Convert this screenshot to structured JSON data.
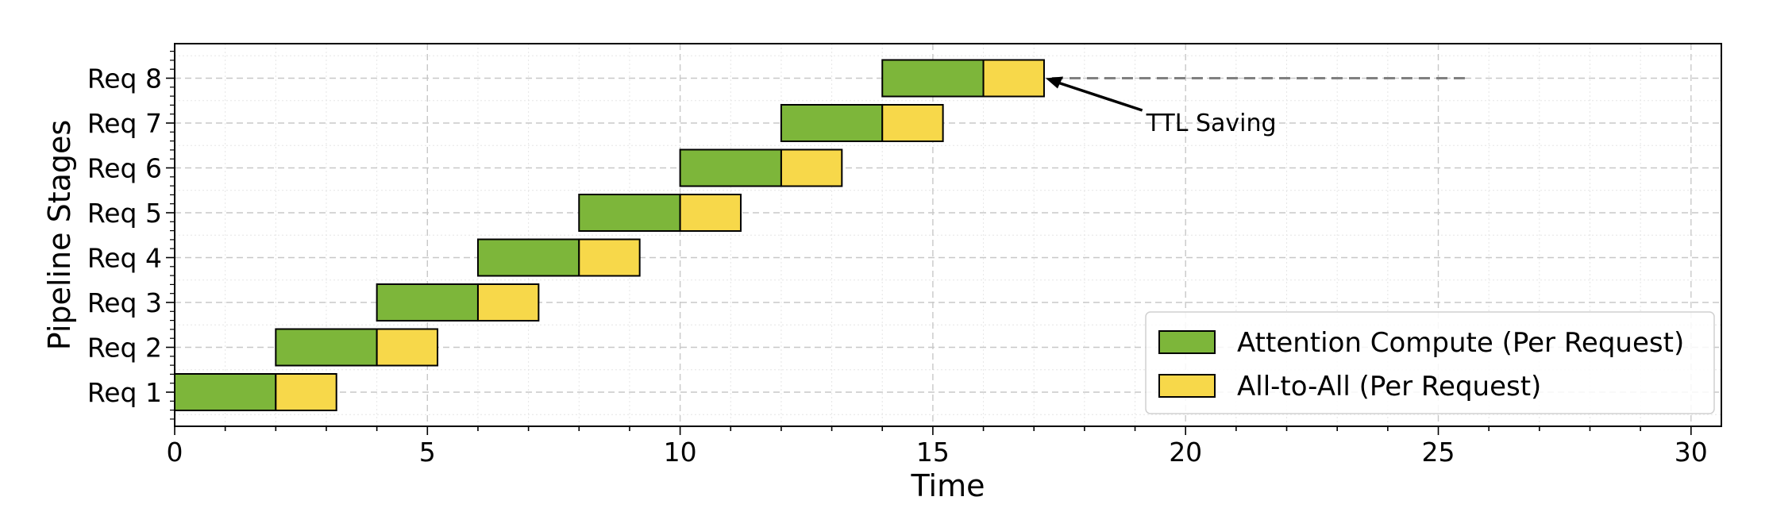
{
  "chart_data": {
    "type": "bar",
    "orientation": "horizontal-stacked",
    "title": "",
    "xlabel": "Time",
    "ylabel": "Pipeline Stages",
    "xlim": [
      0,
      30.6
    ],
    "xticks": [
      0,
      5,
      10,
      15,
      20,
      25,
      30
    ],
    "categories": [
      "Req 1",
      "Req 2",
      "Req 3",
      "Req 4",
      "Req 5",
      "Req 6",
      "Req 7",
      "Req 8"
    ],
    "series": [
      {
        "name": "Attention Compute (Per Request)",
        "color": "#7db63a",
        "start": [
          0,
          2,
          4,
          6,
          8,
          10,
          12,
          14
        ],
        "duration": [
          2,
          2,
          2,
          2,
          2,
          2,
          2,
          2
        ]
      },
      {
        "name": "All-to-All (Per Request)",
        "color": "#f7d84a",
        "start": [
          2,
          4,
          6,
          8,
          10,
          12,
          14,
          16
        ],
        "duration": [
          1.2,
          1.2,
          1.2,
          1.2,
          1.2,
          1.2,
          1.2,
          1.2
        ]
      }
    ],
    "annotation": {
      "text": "TTL Saving",
      "arrow_head": [
        17.2,
        "Req 8"
      ],
      "arrow_tail": [
        19.3,
        "Req 7"
      ],
      "dashed_line_x": [
        17.2,
        25.6
      ],
      "dashed_line_row": "Req 8"
    },
    "grid": true,
    "legend_position": "lower right"
  }
}
